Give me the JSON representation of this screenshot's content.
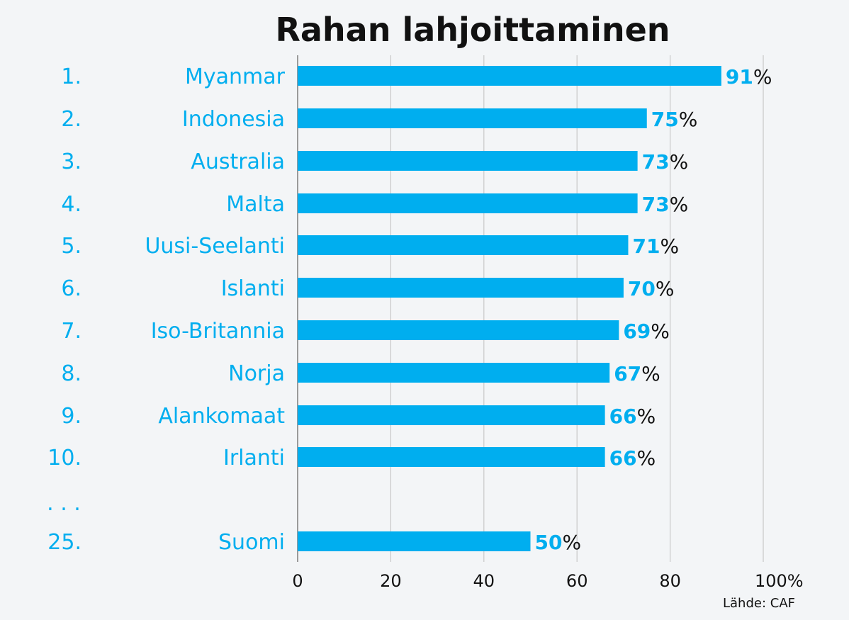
{
  "chart_data": {
    "type": "bar",
    "orientation": "horizontal",
    "title": "Rahan lahjoittaminen",
    "source": "Lähde:  CAF",
    "ellipsis": ". . .",
    "unit": "%",
    "xlim": [
      0,
      100
    ],
    "x_ticks": [
      "0",
      "20",
      "40",
      "60",
      "80",
      "100%"
    ],
    "grid": true,
    "bar_color": "#00aeef",
    "label_color": "#00aeef",
    "unit_color": "#111111",
    "rows": [
      {
        "rank": "1.",
        "country": "Myanmar",
        "value": 91
      },
      {
        "rank": "2.",
        "country": "Indonesia",
        "value": 75
      },
      {
        "rank": "3.",
        "country": "Australia",
        "value": 73
      },
      {
        "rank": "4.",
        "country": "Malta",
        "value": 73
      },
      {
        "rank": "5.",
        "country": "Uusi-Seelanti",
        "value": 71
      },
      {
        "rank": "6.",
        "country": "Islanti",
        "value": 70
      },
      {
        "rank": "7.",
        "country": "Iso-Britannia",
        "value": 69
      },
      {
        "rank": "8.",
        "country": "Norja",
        "value": 67
      },
      {
        "rank": "9.",
        "country": "Alankomaat",
        "value": 66
      },
      {
        "rank": "10.",
        "country": "Irlanti",
        "value": 66
      },
      {
        "rank": "25.",
        "country": "Suomi",
        "value": 50
      }
    ]
  }
}
